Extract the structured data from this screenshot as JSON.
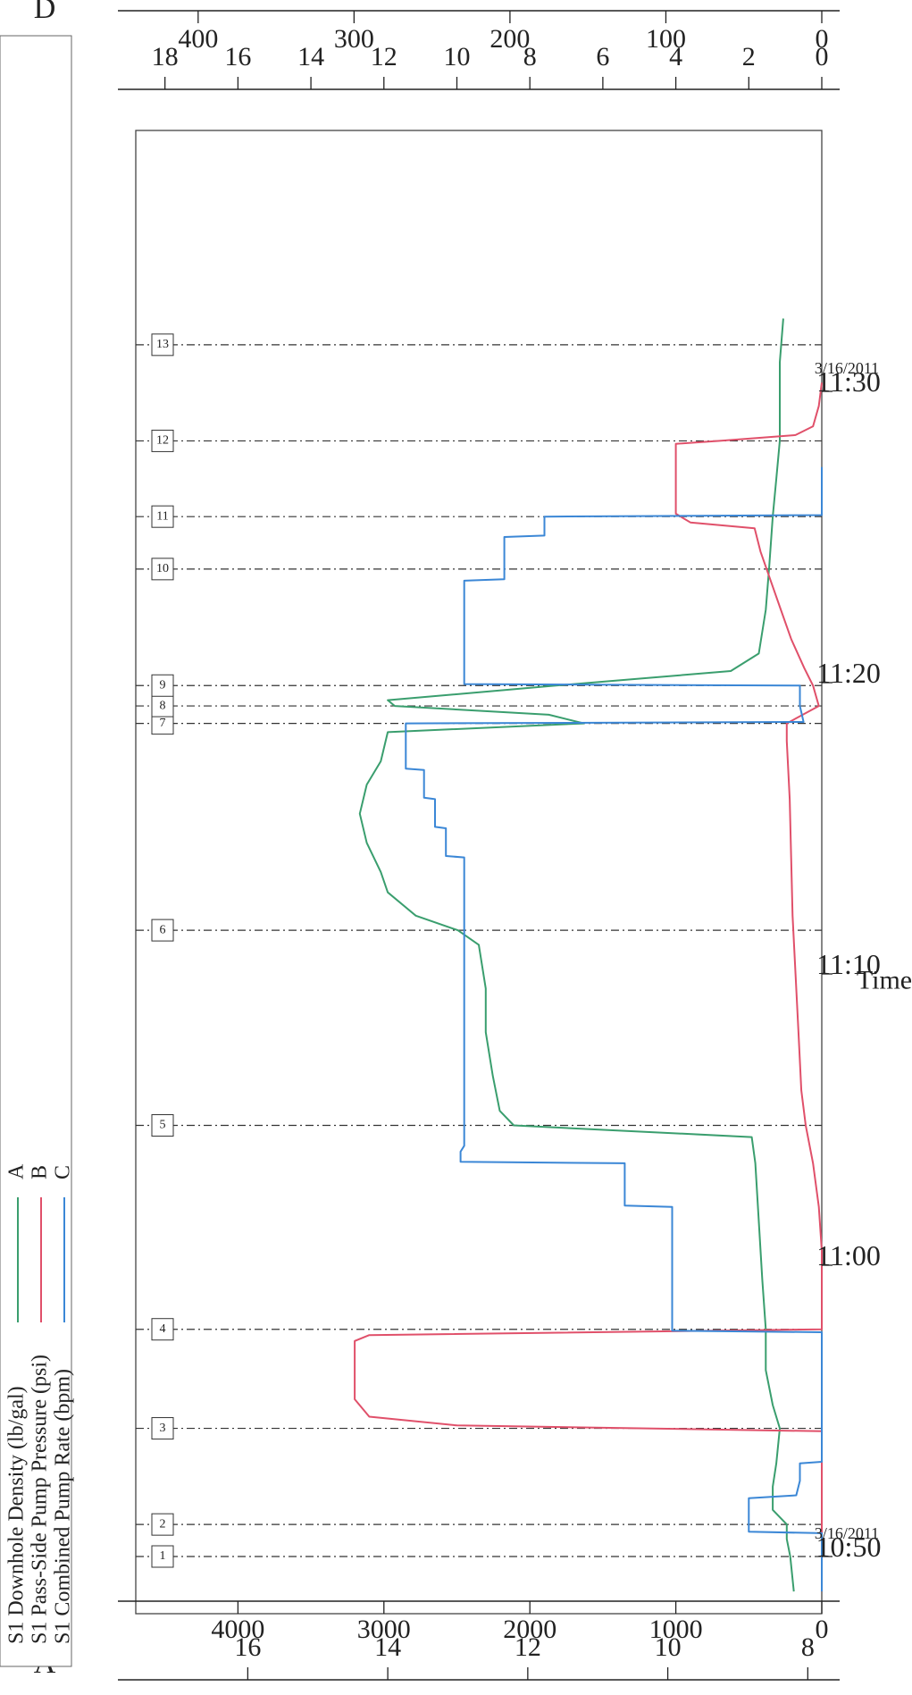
{
  "chart_data": {
    "type": "line",
    "xlabel": "Time",
    "x_ticks": [
      {
        "label": "10:50",
        "date": "3/16/2011"
      },
      {
        "label": "11:00",
        "date": ""
      },
      {
        "label": "11:10",
        "date": ""
      },
      {
        "label": "11:20",
        "date": ""
      },
      {
        "label": "11:30",
        "date": "3/16/2011"
      }
    ],
    "xlim_minutes_from_10_50": [
      -1.2,
      37.4
    ],
    "axes": [
      {
        "letter": "A",
        "ticks": [
          "8",
          "10",
          "12",
          "14",
          "16"
        ],
        "range": [
          7.8,
          17.6
        ],
        "unit": "lb/gal"
      },
      {
        "letter": "B",
        "ticks": [
          "0",
          "1000",
          "2000",
          "3000",
          "4000"
        ],
        "range": [
          0,
          4700
        ],
        "unit": "psi"
      },
      {
        "letter": "C",
        "ticks": [
          "0",
          "2",
          "4",
          "6",
          "8",
          "10",
          "12",
          "14",
          "16",
          "18"
        ],
        "range": [
          0,
          18.8
        ],
        "unit": "bpm"
      },
      {
        "letter": "D",
        "ticks": [
          "0",
          "100",
          "200",
          "300",
          "400"
        ],
        "range": [
          0,
          440
        ],
        "unit": ""
      }
    ],
    "legend": [
      {
        "label": "S1 Downhole Density (lb/gal)",
        "axis": "A",
        "color": "#3a9e6e"
      },
      {
        "label": "S1 Pass-Side Pump Pressure (psi)",
        "axis": "B",
        "color": "#e0506a"
      },
      {
        "label": "S1 Combined Pump Rate (bpm)",
        "axis": "C",
        "color": "#3b87d6"
      }
    ],
    "events": [
      {
        "label": "1",
        "t": 0.0
      },
      {
        "label": "2",
        "t": 1.1
      },
      {
        "label": "3",
        "t": 4.4
      },
      {
        "label": "4",
        "t": 7.8
      },
      {
        "label": "5",
        "t": 14.8
      },
      {
        "label": "6",
        "t": 21.5
      },
      {
        "label": "7",
        "t": 28.6
      },
      {
        "label": "8",
        "t": 29.2
      },
      {
        "label": "9",
        "t": 29.9
      },
      {
        "label": "10",
        "t": 33.9
      },
      {
        "label": "11",
        "t": 35.7
      },
      {
        "label": "12",
        "t": 38.3
      },
      {
        "label": "13",
        "t": 41.6
      }
    ],
    "series": [
      {
        "name": "S1 Downhole Density (lb/gal)",
        "axis": "A",
        "color": "#3a9e6e",
        "x": [
          -1.2,
          0,
          0.6,
          1.1,
          1.6,
          2.4,
          3.2,
          4.4,
          5.2,
          6.4,
          7.8,
          9.5,
          11.5,
          13.5,
          14.4,
          14.8,
          15.3,
          16.5,
          18,
          19.5,
          21,
          21.5,
          22,
          22.8,
          23.5,
          24.5,
          25.5,
          26.5,
          27.3,
          28.3,
          28.6,
          28.9,
          29.2,
          29.4,
          29.9,
          30.4,
          31,
          32.5,
          34,
          35.7,
          37,
          38.3,
          39.5,
          41,
          42.5
        ],
        "y": [
          8.2,
          8.25,
          8.3,
          8.3,
          8.5,
          8.5,
          8.45,
          8.4,
          8.5,
          8.6,
          8.6,
          8.65,
          8.7,
          8.75,
          8.8,
          12.2,
          12.4,
          12.5,
          12.6,
          12.6,
          12.7,
          13.0,
          13.6,
          14.0,
          14.1,
          14.3,
          14.4,
          14.3,
          14.1,
          14.0,
          11.2,
          11.7,
          13.9,
          14.0,
          11.6,
          9.1,
          8.7,
          8.6,
          8.55,
          8.5,
          8.45,
          8.4,
          8.4,
          8.4,
          8.35
        ]
      },
      {
        "name": "S1 Pass-Side Pump Pressure (psi)",
        "axis": "B",
        "color": "#e0506a",
        "x": [
          -1.2,
          4.3,
          4.5,
          4.8,
          5.4,
          6.5,
          7.4,
          7.6,
          7.8,
          8.5,
          10.5,
          12,
          13.5,
          14.8,
          16,
          18,
          20,
          22,
          24,
          26,
          28,
          28.6,
          29.2,
          29.9,
          30.5,
          31.5,
          32.5,
          33.5,
          34.5,
          35.3,
          35.5,
          35.8,
          37,
          38.2,
          38.3,
          38.5,
          38.8,
          39.5,
          40.3
        ],
        "y": [
          0,
          0,
          2500,
          3100,
          3200,
          3200,
          3200,
          3100,
          0,
          0,
          0,
          20,
          60,
          110,
          140,
          160,
          180,
          200,
          210,
          220,
          240,
          240,
          20,
          60,
          120,
          210,
          280,
          350,
          420,
          460,
          900,
          1000,
          1000,
          1000,
          700,
          180,
          60,
          20,
          0
        ]
      },
      {
        "name": "S1 Combined Pump Rate (bpm)",
        "axis": "C",
        "color": "#3b87d6",
        "x": [
          -1.2,
          0.8,
          0.85,
          1.1,
          2.0,
          2.1,
          2.6,
          3.2,
          3.25,
          7.7,
          7.75,
          8.0,
          8.05,
          12.0,
          12.05,
          13.5,
          13.55,
          13.9,
          14.1,
          20,
          24.0,
          24.05,
          25.0,
          25.05,
          26.0,
          26.05,
          27.0,
          27.05,
          28.6,
          28.65,
          29.2,
          29.9,
          29.95,
          32.5,
          33.5,
          33.55,
          35.0,
          35.05,
          35.7,
          35.75,
          37.4
        ],
        "y": [
          0,
          0,
          2.0,
          2.0,
          2.0,
          0.7,
          0.6,
          0.6,
          0,
          0,
          4.1,
          4.1,
          4.1,
          4.1,
          5.4,
          5.4,
          9.9,
          9.9,
          9.8,
          9.8,
          9.8,
          10.3,
          10.3,
          10.6,
          10.6,
          10.9,
          10.9,
          11.4,
          11.4,
          0.5,
          0.6,
          0.6,
          9.8,
          9.8,
          9.8,
          8.7,
          8.7,
          7.6,
          7.6,
          0,
          0
        ]
      }
    ]
  }
}
